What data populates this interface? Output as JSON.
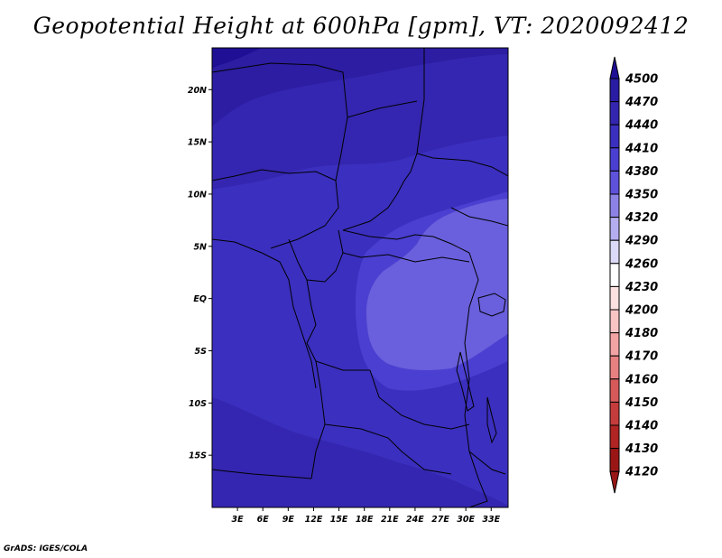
{
  "title": "Geopotential Height at 600hPa [gpm], VT: 2020092412",
  "credit": "GrADS: IGES/COLA",
  "map": {
    "region": "Central Africa",
    "lon_range": [
      0,
      35
    ],
    "lat_range": [
      -20,
      24
    ],
    "lon_ticks": [
      "3E",
      "6E",
      "9E",
      "12E",
      "15E",
      "18E",
      "21E",
      "24E",
      "27E",
      "30E",
      "33E"
    ],
    "lat_ticks": [
      "20N",
      "15N",
      "10N",
      "5N",
      "EQ",
      "5S",
      "10S",
      "15S"
    ],
    "base_color": "#3b2fbf",
    "field_colors": {
      "4380": "#4a3fd0",
      "4410": "#3b2fbf",
      "4440": "#3426b0",
      "4470": "#2c1da2",
      "4350": "#6a5fdc"
    },
    "border_color": "#000000"
  },
  "colorbar": {
    "levels": [
      "4500",
      "4470",
      "4440",
      "4410",
      "4380",
      "4350",
      "4320",
      "4290",
      "4260",
      "4230",
      "4200",
      "4180",
      "4170",
      "4160",
      "4150",
      "4140",
      "4130",
      "4120"
    ],
    "colors": [
      "#1f0f95",
      "#2a1ca3",
      "#3426b0",
      "#3b2fbf",
      "#4a3fd0",
      "#5e52da",
      "#8c82e6",
      "#b4aef0",
      "#dcdaf9",
      "#ffffff",
      "#fde0e0",
      "#f8c4c4",
      "#f2a3a3",
      "#e78080",
      "#d65a5a",
      "#c53c3c",
      "#b02424",
      "#9a1616"
    ]
  }
}
